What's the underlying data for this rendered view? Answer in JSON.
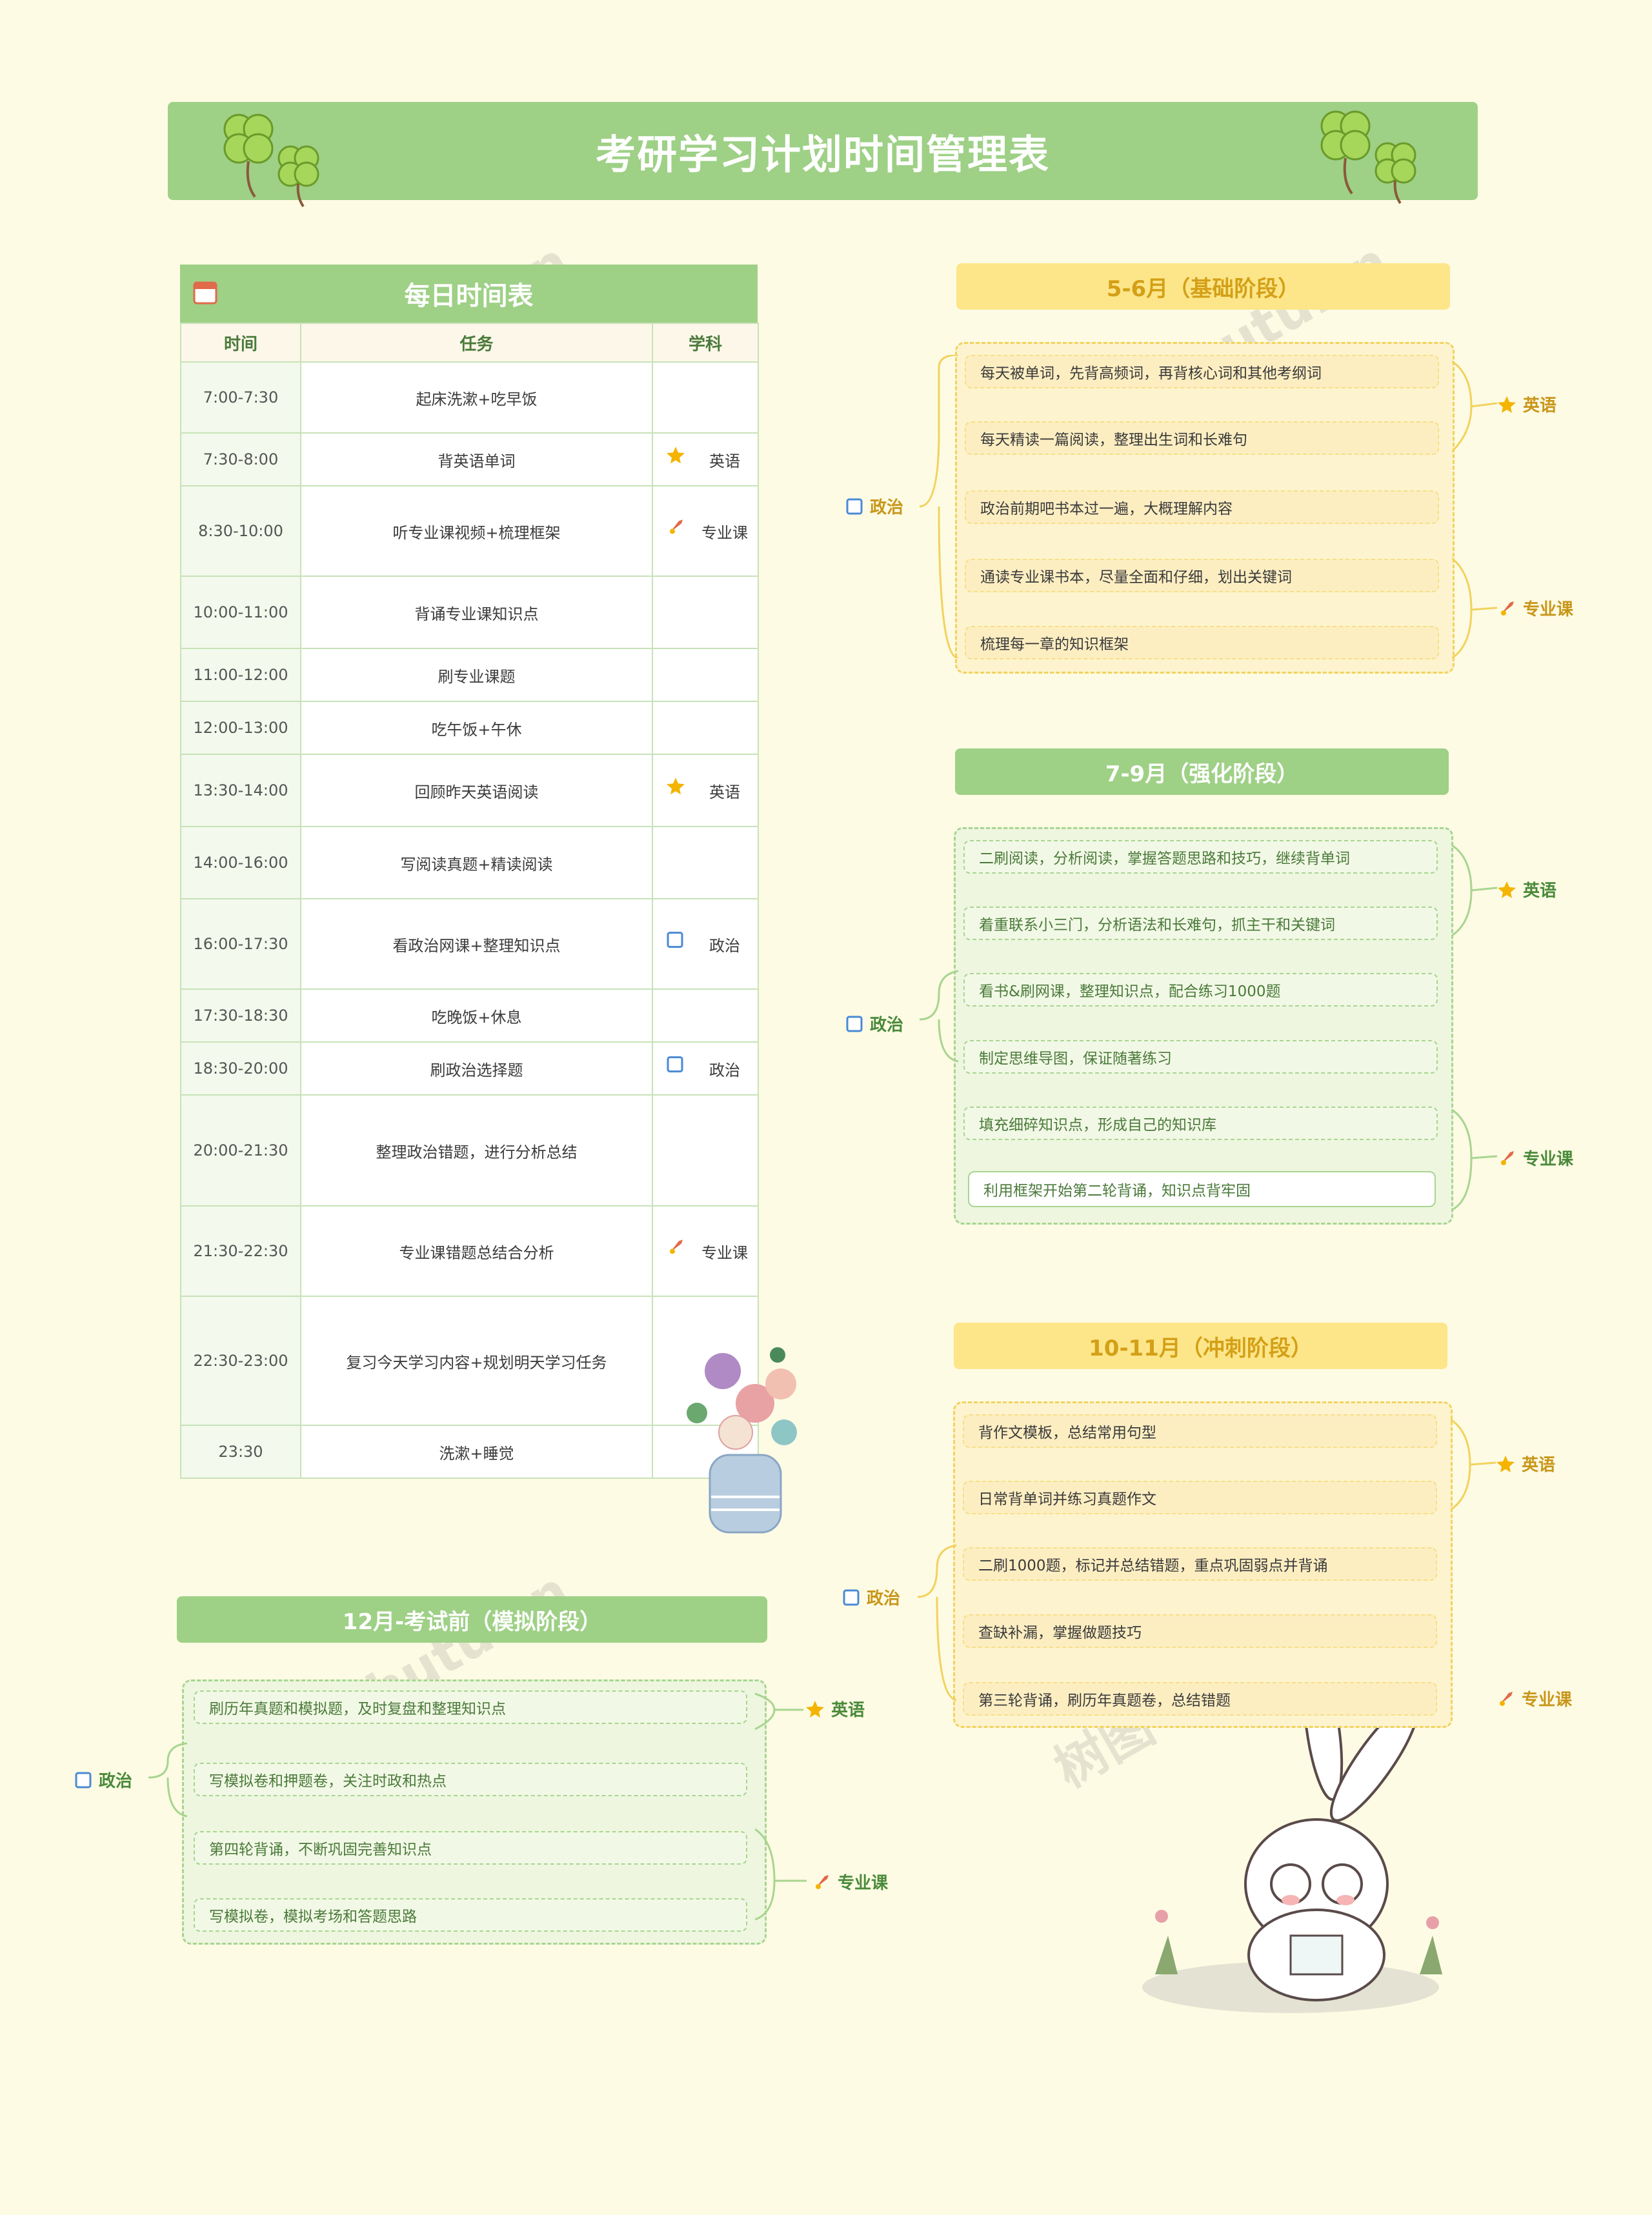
{
  "title": "考研学习计划时间管理表",
  "daily": {
    "title": "每日时间表",
    "headers": [
      "时间",
      "任务",
      "学科"
    ],
    "rows": [
      {
        "time": "7:00-7:30",
        "task": "起床洗漱+吃早饭",
        "subject": "",
        "icon": ""
      },
      {
        "time": "7:30-8:00",
        "task": "背英语单词",
        "subject": "英语",
        "icon": "star-icon"
      },
      {
        "time": "8:30-10:00",
        "task": "听专业课视频+梳理框架",
        "subject": "专业课",
        "icon": "rocket-icon"
      },
      {
        "time": "10:00-11:00",
        "task": "背诵专业课知识点",
        "subject": "",
        "icon": ""
      },
      {
        "time": "11:00-12:00",
        "task": "刷专业课题",
        "subject": "",
        "icon": ""
      },
      {
        "time": "12:00-13:00",
        "task": "吃午饭+午休",
        "subject": "",
        "icon": ""
      },
      {
        "time": "13:30-14:00",
        "task": "回顾昨天英语阅读",
        "subject": "英语",
        "icon": "star-icon"
      },
      {
        "time": "14:00-16:00",
        "task": "写阅读真题+精读阅读",
        "subject": "",
        "icon": ""
      },
      {
        "time": "16:00-17:30",
        "task": "看政治网课+整理知识点",
        "subject": "政治",
        "icon": "book-icon"
      },
      {
        "time": "17:30-18:30",
        "task": "吃晚饭+休息",
        "subject": "",
        "icon": ""
      },
      {
        "time": "18:30-20:00",
        "task": "刷政治选择题",
        "subject": "政治",
        "icon": "book-icon"
      },
      {
        "time": "20:00-21:30",
        "task": "整理政治错题，进行分析总结",
        "subject": "",
        "icon": ""
      },
      {
        "time": "21:30-22:30",
        "task": "专业课错题总结合分析",
        "subject": "专业课",
        "icon": "rocket-icon"
      },
      {
        "time": "22:30-23:00",
        "task": "复习今天学习内容+规划明天学习任务",
        "subject": "",
        "icon": ""
      },
      {
        "time": "23:30",
        "task": "洗漱+睡觉",
        "subject": "",
        "icon": ""
      }
    ]
  },
  "stages": {
    "s1": {
      "title": "5-6月（基础阶段）",
      "items": [
        "每天被单词，先背高频词，再背核心词和其他考纲词",
        "每天精读一篇阅读，整理出生词和长难句",
        "政治前期吧书本过一遍，大概理解内容",
        "通读专业课书本，尽量全面和仔细，划出关键词",
        "梳理每一章的知识框架"
      ],
      "tags": {
        "english": "英语",
        "politics": "政治",
        "major": "专业课"
      }
    },
    "s2": {
      "title": "7-9月（强化阶段）",
      "items": [
        "二刷阅读，分析阅读，掌握答题思路和技巧，继续背单词",
        "着重联系小三门，分析语法和长难句，抓主干和关键词",
        "看书&刷网课，整理知识点，配合练习1000题",
        "制定思维导图，保证随著练习",
        "填充细碎知识点，形成自己的知识库",
        "利用框架开始第二轮背诵，知识点背牢固"
      ],
      "tags": {
        "english": "英语",
        "politics": "政治",
        "major": "专业课"
      }
    },
    "s3": {
      "title": "10-11月（冲刺阶段）",
      "items": [
        "背作文模板，总结常用句型",
        "日常背单词并练习真题作文",
        "二刷1000题，标记并总结错题，重点巩固弱点并背诵",
        "查缺补漏，掌握做题技巧",
        "第三轮背诵，刷历年真题卷，总结错题"
      ],
      "tags": {
        "english": "英语",
        "politics": "政治",
        "major": "专业课"
      }
    },
    "s4": {
      "title": "12月-考试前（模拟阶段）",
      "items": [
        "刷历年真题和模拟题，及时复盘和整理知识点",
        "写模拟卷和押题卷，关注时政和热点",
        "第四轮背诵，不断巩固完善知识点",
        "写模拟卷，模拟考场和答题思路"
      ],
      "tags": {
        "english": "英语",
        "politics": "政治",
        "major": "专业课"
      }
    }
  },
  "watermark": "树图 shutu.cn",
  "colors": {
    "green": "#9ed086",
    "yellow": "#fde68a",
    "bg": "#fdfbe4"
  }
}
